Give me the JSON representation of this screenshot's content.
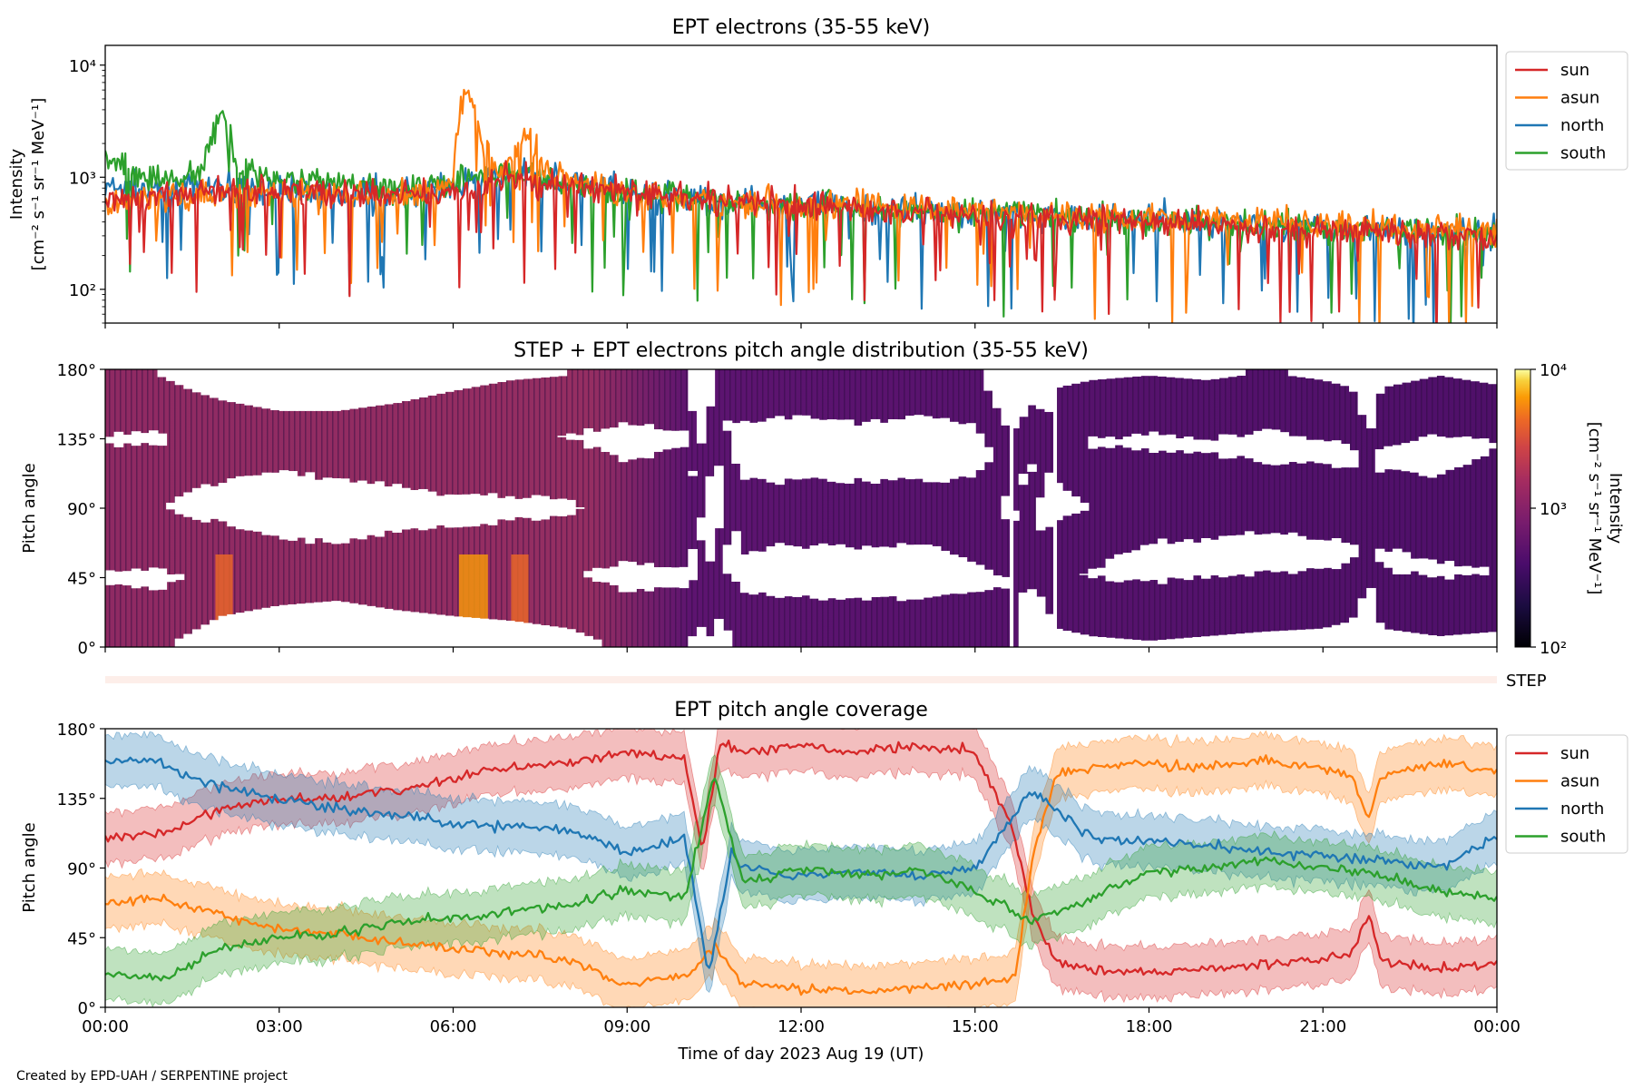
{
  "figure": {
    "credit": "Created by EPD-UAH / SERPENTINE project",
    "xlabel": "Time of day 2023 Aug 19 (UT)",
    "xticks": [
      "00:00",
      "03:00",
      "06:00",
      "09:00",
      "12:00",
      "15:00",
      "18:00",
      "21:00",
      "00:00"
    ]
  },
  "colors": {
    "sun": "#d62728",
    "asun": "#ff7f0e",
    "north": "#1f77b4",
    "south": "#2ca02c"
  },
  "chart_data": [
    {
      "id": "intensity",
      "type": "line",
      "title": "EPT electrons (35-55 keV)",
      "ylabel_line1": "Intensity",
      "ylabel_line2": "[cm⁻² s⁻¹ sr⁻¹ MeV⁻¹]",
      "yscale": "log",
      "xlim_hours": [
        0,
        24
      ],
      "ylim": [
        50,
        15000
      ],
      "yticks": [
        {
          "value": 100,
          "label": "10²"
        },
        {
          "value": 1000,
          "label": "10³"
        },
        {
          "value": 10000,
          "label": "10⁴"
        }
      ],
      "legend_position": "outside-right",
      "series": [
        {
          "name": "sun",
          "color": "#d62728",
          "x": [
            0,
            1,
            2,
            3,
            4,
            5,
            6,
            6.5,
            7,
            7.5,
            8,
            9,
            10,
            11,
            12,
            13,
            14,
            15,
            16,
            17,
            18,
            19,
            20,
            21,
            22,
            23,
            24
          ],
          "y": [
            650,
            700,
            750,
            720,
            700,
            680,
            700,
            800,
            1000,
            900,
            850,
            720,
            650,
            600,
            560,
            520,
            480,
            460,
            440,
            420,
            400,
            380,
            360,
            340,
            320,
            300,
            290
          ]
        },
        {
          "name": "asun",
          "color": "#ff7f0e",
          "x": [
            0,
            1,
            2,
            3,
            4,
            5,
            6,
            6.2,
            6.5,
            6.8,
            7,
            7.3,
            7.6,
            8,
            9,
            10,
            12,
            14,
            16,
            18,
            20,
            22,
            24
          ],
          "y": [
            600,
            650,
            700,
            720,
            700,
            680,
            800,
            5800,
            2200,
            1000,
            1500,
            2400,
            1200,
            900,
            750,
            650,
            580,
            520,
            480,
            440,
            400,
            360,
            330
          ]
        },
        {
          "name": "north",
          "color": "#1f77b4",
          "x": [
            0,
            1,
            2,
            3,
            4,
            5,
            6,
            7,
            8,
            9,
            10,
            12,
            14,
            16,
            18,
            20,
            22,
            24
          ],
          "y": [
            800,
            760,
            820,
            780,
            740,
            700,
            820,
            1050,
            880,
            720,
            630,
            560,
            500,
            460,
            420,
            380,
            340,
            300
          ]
        },
        {
          "name": "south",
          "color": "#2ca02c",
          "x": [
            0,
            0.5,
            1,
            1.7,
            2,
            2.3,
            3,
            4,
            5,
            6,
            7,
            8,
            9,
            10,
            12,
            14,
            16,
            18,
            20,
            22,
            24
          ],
          "y": [
            1500,
            1100,
            900,
            1200,
            3500,
            1200,
            950,
            850,
            800,
            900,
            1100,
            900,
            750,
            650,
            560,
            500,
            460,
            420,
            380,
            340,
            300
          ]
        }
      ]
    },
    {
      "id": "pad",
      "type": "heatmap",
      "title": "STEP + EPT electrons pitch angle distribution (35-55 keV)",
      "ylabel": "Pitch angle",
      "xlim_hours": [
        0,
        24
      ],
      "ylim": [
        0,
        180
      ],
      "yticks": [
        {
          "value": 0,
          "label": "0°"
        },
        {
          "value": 45,
          "label": "45°"
        },
        {
          "value": 90,
          "label": "90°"
        },
        {
          "value": 135,
          "label": "135°"
        },
        {
          "value": 180,
          "label": "180°"
        }
      ],
      "colorbar": {
        "label_line1": "Intensity",
        "label_line2": "[cm⁻² s⁻¹ sr⁻¹ MeV⁻¹]",
        "scale": "log",
        "range": [
          100,
          10000
        ],
        "ticks": [
          {
            "value": 100,
            "label": "10²"
          },
          {
            "value": 1000,
            "label": "10³"
          },
          {
            "value": 10000,
            "label": "10⁴"
          }
        ],
        "colormap": "inferno"
      }
    },
    {
      "id": "step",
      "type": "bar",
      "label": "STEP"
    },
    {
      "id": "coverage",
      "type": "line",
      "title": "EPT pitch angle coverage",
      "ylabel": "Pitch angle",
      "xlim_hours": [
        0,
        24
      ],
      "ylim": [
        0,
        180
      ],
      "yticks": [
        {
          "value": 0,
          "label": "0°"
        },
        {
          "value": 45,
          "label": "45°"
        },
        {
          "value": 90,
          "label": "90°"
        },
        {
          "value": 135,
          "label": "135°"
        },
        {
          "value": 180,
          "label": "180°"
        }
      ],
      "legend_position": "outside-right",
      "band_halfwidth_deg": 15,
      "series": [
        {
          "name": "sun",
          "color": "#d62728",
          "x": [
            0,
            1,
            2,
            3,
            4,
            5,
            6,
            7,
            8,
            9,
            10,
            10.3,
            10.6,
            11,
            12,
            13,
            14,
            15,
            15.6,
            16,
            16.4,
            17,
            18,
            19,
            20,
            21,
            21.5,
            21.8,
            22,
            23,
            24
          ],
          "y": [
            110,
            112,
            128,
            135,
            135,
            140,
            148,
            155,
            158,
            165,
            160,
            100,
            170,
            165,
            170,
            165,
            170,
            165,
            120,
            60,
            30,
            25,
            22,
            25,
            28,
            30,
            35,
            60,
            30,
            25,
            28
          ]
        },
        {
          "name": "asun",
          "color": "#ff7f0e",
          "x": [
            0,
            1,
            2,
            3,
            4,
            5,
            6,
            7,
            8,
            9,
            10,
            10.5,
            11,
            12,
            13,
            14,
            15,
            15.7,
            16,
            16.4,
            17,
            18,
            19,
            20,
            21,
            21.5,
            21.8,
            22,
            23,
            24
          ],
          "y": [
            68,
            70,
            60,
            50,
            48,
            42,
            38,
            35,
            30,
            15,
            20,
            40,
            15,
            12,
            10,
            12,
            15,
            20,
            100,
            150,
            155,
            158,
            155,
            160,
            155,
            150,
            120,
            150,
            158,
            152
          ]
        },
        {
          "name": "north",
          "color": "#1f77b4",
          "x": [
            0,
            0.8,
            1.5,
            2,
            3,
            4,
            5,
            6,
            7,
            8,
            9,
            10,
            10.4,
            10.8,
            11,
            12,
            13,
            14,
            15,
            16,
            17,
            18,
            19,
            20,
            21,
            22,
            23,
            24
          ],
          "y": [
            158,
            160,
            148,
            142,
            135,
            128,
            125,
            118,
            118,
            115,
            100,
            110,
            20,
            100,
            90,
            85,
            88,
            85,
            90,
            140,
            110,
            108,
            105,
            100,
            98,
            95,
            90,
            110
          ]
        },
        {
          "name": "south",
          "color": "#2ca02c",
          "x": [
            0,
            0.5,
            1,
            1.5,
            2,
            3,
            4,
            5,
            6,
            7,
            8,
            9,
            10,
            10.5,
            11,
            12,
            13,
            14,
            15,
            16,
            17,
            18,
            19,
            20,
            21,
            22,
            23,
            24
          ],
          "y": [
            22,
            20,
            18,
            28,
            38,
            45,
            48,
            55,
            58,
            62,
            66,
            76,
            70,
            150,
            80,
            90,
            85,
            90,
            75,
            55,
            70,
            88,
            90,
            95,
            90,
            85,
            75,
            70
          ]
        }
      ]
    }
  ]
}
